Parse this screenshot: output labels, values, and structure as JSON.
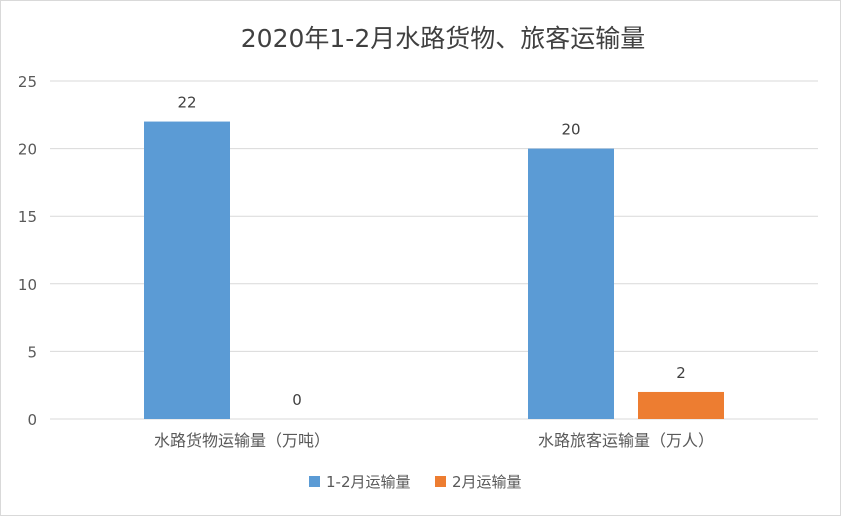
{
  "chart_data": {
    "type": "bar",
    "title": "2020年1-2月水路货物、旅客运输量",
    "categories": [
      "水路货物运输量（万吨）",
      "水路旅客运输量（万人）"
    ],
    "series": [
      {
        "name": "1-2月运输量",
        "values": [
          22,
          20
        ],
        "color": "#5b9bd5"
      },
      {
        "name": "2月运输量",
        "values": [
          0,
          2
        ],
        "color": "#ed7d31"
      }
    ],
    "ylim": [
      0,
      25
    ],
    "yticks": [
      0,
      5,
      10,
      15,
      20,
      25
    ],
    "grid": true,
    "legend_position": "bottom",
    "data_labels": true
  }
}
